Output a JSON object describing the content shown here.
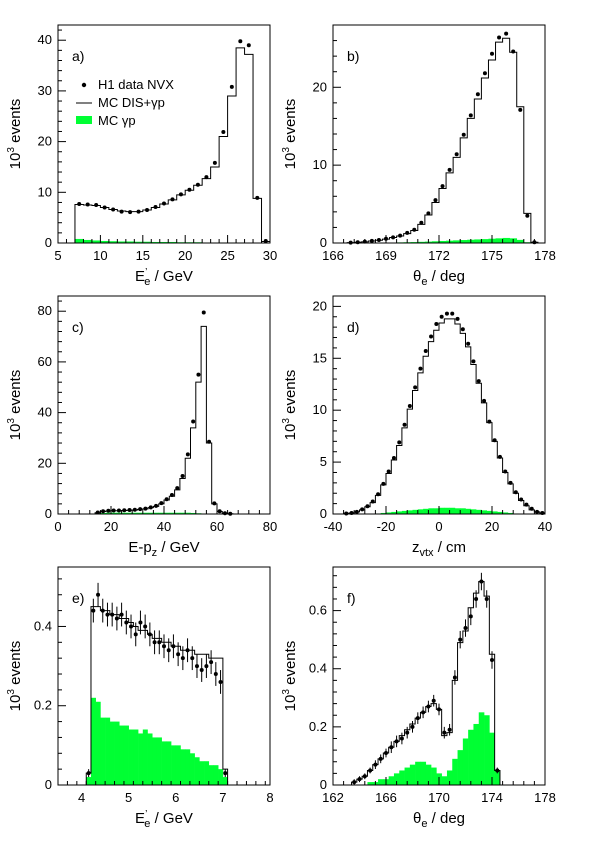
{
  "figure": {
    "legend": {
      "data": "H1 data NVX",
      "mc_dis": "MC DIS+γp",
      "mc_gp": "MC γp"
    },
    "colors": {
      "mc_gp_fill": "#00ff33",
      "data": "#000000",
      "mc_line": "#000000"
    }
  },
  "chart_data": [
    {
      "panel": "a)",
      "type": "histogram",
      "xlabel": "E’e / GeV",
      "ylabel": "10³ events",
      "xlim": [
        5,
        30
      ],
      "ylim": [
        0,
        43
      ],
      "xticks": [
        5,
        10,
        15,
        20,
        25,
        30
      ],
      "yticks": [
        0,
        10,
        20,
        30,
        40
      ],
      "bin_edges": [
        7,
        8,
        9,
        10,
        11,
        12,
        13,
        14,
        15,
        16,
        17,
        18,
        19,
        20,
        21,
        22,
        23,
        24,
        25,
        26,
        27,
        28,
        29,
        30
      ],
      "mc_dis": [
        7.6,
        7.5,
        7.4,
        7.0,
        6.6,
        6.3,
        6.2,
        6.2,
        6.5,
        7.0,
        7.7,
        8.5,
        9.5,
        10.4,
        11.4,
        12.7,
        15.0,
        21.0,
        29.0,
        38.5,
        37.2,
        8.8,
        0.3
      ],
      "mc_gp": [
        0.8,
        0.6,
        0.5,
        0.4,
        0.35,
        0.3,
        0.3,
        0.25,
        0.25,
        0.2,
        0.2,
        0.2,
        0.15,
        0.15,
        0.15,
        0.1,
        0.1,
        0.1,
        0.1,
        0.1,
        0.05,
        0.05,
        0
      ],
      "data": [
        7.7,
        7.6,
        7.5,
        7.0,
        6.6,
        6.2,
        6.1,
        6.2,
        6.5,
        7.1,
        7.8,
        8.6,
        9.6,
        10.5,
        11.5,
        13.0,
        15.8,
        21.9,
        30.8,
        39.8,
        39.0,
        8.9,
        0.4
      ]
    },
    {
      "panel": "b)",
      "type": "histogram",
      "xlabel": "θe / deg",
      "ylabel": "10³ events",
      "xlim": [
        166,
        178
      ],
      "ylim": [
        0,
        28
      ],
      "xticks": [
        166,
        169,
        172,
        175,
        178
      ],
      "yticks": [
        0,
        10,
        20
      ],
      "bin_edges": [
        166.0,
        166.4,
        166.8,
        167.2,
        167.6,
        168.0,
        168.4,
        168.8,
        169.2,
        169.6,
        170.0,
        170.4,
        170.8,
        171.2,
        171.6,
        172.0,
        172.4,
        172.8,
        173.2,
        173.6,
        174.0,
        174.4,
        174.8,
        175.2,
        175.6,
        176.0,
        176.4,
        176.8,
        177.2,
        177.6,
        178.0
      ],
      "mc_dis": [
        0,
        0,
        0.05,
        0.1,
        0.15,
        0.25,
        0.35,
        0.5,
        0.7,
        0.9,
        1.2,
        1.6,
        2.4,
        3.6,
        5.2,
        7.0,
        9.0,
        11.0,
        13.5,
        16.0,
        18.5,
        21.2,
        23.5,
        25.8,
        26.3,
        24.5,
        17.5,
        3.8,
        0.1,
        0
      ],
      "mc_gp": [
        0,
        0,
        0,
        0,
        0.02,
        0.03,
        0.04,
        0.05,
        0.06,
        0.08,
        0.1,
        0.12,
        0.15,
        0.18,
        0.22,
        0.26,
        0.3,
        0.34,
        0.38,
        0.42,
        0.46,
        0.5,
        0.55,
        0.6,
        0.65,
        0.6,
        0.4,
        0.1,
        0,
        0
      ],
      "data": [
        0,
        0,
        0.05,
        0.1,
        0.18,
        0.27,
        0.38,
        0.55,
        0.72,
        0.95,
        1.3,
        1.7,
        2.6,
        3.8,
        5.5,
        7.3,
        9.4,
        11.4,
        13.9,
        16.4,
        19.1,
        21.8,
        24.3,
        26.4,
        26.9,
        24.6,
        17.1,
        3.5,
        0.1,
        0
      ]
    },
    {
      "panel": "c)",
      "type": "histogram",
      "xlabel": "E-pz / GeV",
      "ylabel": "10³ events",
      "xlim": [
        0,
        80
      ],
      "ylim": [
        0,
        86
      ],
      "xticks": [
        0,
        20,
        40,
        60,
        80
      ],
      "yticks": [
        0,
        20,
        40,
        60,
        80
      ],
      "bin_edges": [
        14,
        16,
        18,
        20,
        22,
        24,
        26,
        28,
        30,
        32,
        34,
        36,
        38,
        40,
        42,
        44,
        46,
        48,
        50,
        52,
        54,
        56,
        58,
        60,
        62,
        64,
        66,
        68,
        70
      ],
      "mc_dis": [
        0.5,
        1.0,
        1.2,
        1.3,
        1.3,
        1.4,
        1.5,
        1.6,
        1.8,
        2.0,
        2.5,
        3.0,
        4.0,
        5.5,
        7.0,
        9.5,
        14.0,
        22.0,
        34.0,
        52.0,
        74.0,
        28.0,
        4.0,
        1.0,
        0.3,
        0.1,
        0,
        0
      ],
      "mc_gp": [
        0.3,
        0.4,
        0.5,
        0.5,
        0.5,
        0.5,
        0.5,
        0.5,
        0.5,
        0.5,
        0.5,
        0.5,
        0.5,
        0.5,
        0.5,
        0.5,
        0.5,
        0.5,
        0.4,
        0.3,
        0.2,
        0.1,
        0,
        0,
        0,
        0,
        0,
        0
      ],
      "data": [
        0.6,
        1.1,
        1.3,
        1.4,
        1.4,
        1.5,
        1.6,
        1.7,
        1.9,
        2.1,
        2.6,
        3.2,
        4.3,
        5.8,
        7.5,
        10.2,
        15.0,
        23.5,
        36.5,
        55.0,
        79.5,
        28.5,
        4.2,
        1.1,
        0.3,
        0.1,
        0,
        0
      ]
    },
    {
      "panel": "d)",
      "type": "histogram",
      "xlabel": "zvtx / cm",
      "ylabel": "10³ events",
      "xlim": [
        -40,
        40
      ],
      "ylim": [
        0,
        21
      ],
      "xticks": [
        -40,
        -20,
        0,
        20,
        40
      ],
      "yticks": [
        0,
        5,
        10,
        15,
        20
      ],
      "bin_edges": [
        -40,
        -38,
        -36,
        -34,
        -32,
        -30,
        -28,
        -26,
        -24,
        -22,
        -20,
        -18,
        -16,
        -14,
        -12,
        -10,
        -8,
        -6,
        -4,
        -2,
        0,
        2,
        4,
        6,
        8,
        10,
        12,
        14,
        16,
        18,
        20,
        22,
        24,
        26,
        28,
        30,
        32,
        34,
        36,
        38,
        40
      ],
      "mc_dis": [
        0,
        0,
        0.05,
        0.1,
        0.2,
        0.4,
        0.7,
        1.1,
        1.8,
        2.8,
        3.9,
        5.2,
        6.6,
        8.3,
        10.1,
        11.9,
        13.6,
        15.2,
        16.6,
        17.7,
        18.4,
        18.8,
        18.8,
        18.3,
        17.4,
        16.1,
        14.4,
        12.6,
        10.7,
        8.8,
        7.0,
        5.4,
        4.0,
        2.9,
        2.0,
        1.3,
        0.8,
        0.4,
        0.2,
        0.1
      ],
      "mc_gp": [
        0,
        0,
        0,
        0,
        0,
        0,
        0,
        0,
        0.05,
        0.1,
        0.15,
        0.2,
        0.25,
        0.3,
        0.35,
        0.4,
        0.45,
        0.5,
        0.55,
        0.55,
        0.6,
        0.6,
        0.6,
        0.55,
        0.55,
        0.5,
        0.45,
        0.4,
        0.35,
        0.3,
        0.25,
        0.2,
        0.15,
        0.1,
        0.05,
        0,
        0,
        0,
        0,
        0
      ],
      "data": [
        0,
        0,
        0.05,
        0.1,
        0.2,
        0.45,
        0.75,
        1.2,
        1.9,
        2.9,
        4.1,
        5.4,
        6.9,
        8.6,
        10.4,
        12.2,
        14.0,
        15.7,
        17.1,
        18.3,
        19.0,
        19.3,
        19.3,
        18.8,
        17.8,
        16.4,
        14.7,
        12.8,
        10.9,
        8.9,
        7.1,
        5.5,
        4.1,
        3.0,
        2.1,
        1.4,
        0.9,
        0.5,
        0.2,
        0.1
      ]
    },
    {
      "panel": "e)",
      "type": "histogram",
      "xlabel": "E’e / GeV",
      "ylabel": "10³ events",
      "xlim": [
        3.5,
        8.0
      ],
      "ylim": [
        0,
        0.55
      ],
      "xticks": [
        4,
        5,
        6,
        7,
        8
      ],
      "yticks": [
        0,
        0.2,
        0.4
      ],
      "bin_edges": [
        4.1,
        4.2,
        4.3,
        4.4,
        4.5,
        4.6,
        4.7,
        4.8,
        4.9,
        5.0,
        5.1,
        5.2,
        5.3,
        5.4,
        5.5,
        5.6,
        5.7,
        5.8,
        5.9,
        6.0,
        6.1,
        6.2,
        6.3,
        6.4,
        6.5,
        6.6,
        6.7,
        6.8,
        6.9,
        7.0,
        7.1
      ],
      "mc_dis": [
        0.03,
        0.45,
        0.45,
        0.44,
        0.44,
        0.43,
        0.43,
        0.42,
        0.42,
        0.41,
        0.4,
        0.39,
        0.39,
        0.38,
        0.37,
        0.37,
        0.36,
        0.36,
        0.35,
        0.35,
        0.34,
        0.34,
        0.34,
        0.33,
        0.33,
        0.33,
        0.32,
        0.32,
        0.32,
        0.04
      ],
      "mc_gp": [
        0.02,
        0.22,
        0.21,
        0.17,
        0.17,
        0.16,
        0.16,
        0.15,
        0.15,
        0.14,
        0.14,
        0.13,
        0.14,
        0.13,
        0.12,
        0.12,
        0.11,
        0.11,
        0.1,
        0.1,
        0.09,
        0.09,
        0.08,
        0.07,
        0.06,
        0.06,
        0.05,
        0.05,
        0.04,
        0.02
      ],
      "data": [
        0.03,
        0.44,
        0.48,
        0.44,
        0.43,
        0.43,
        0.42,
        0.43,
        0.41,
        0.4,
        0.38,
        0.41,
        0.4,
        0.38,
        0.36,
        0.36,
        0.35,
        0.34,
        0.35,
        0.33,
        0.32,
        0.34,
        0.32,
        0.3,
        0.29,
        0.3,
        0.31,
        0.28,
        0.26,
        0.03
      ],
      "errors": [
        0.01,
        0.03,
        0.03,
        0.03,
        0.03,
        0.03,
        0.03,
        0.03,
        0.03,
        0.03,
        0.03,
        0.03,
        0.03,
        0.03,
        0.03,
        0.03,
        0.03,
        0.03,
        0.03,
        0.03,
        0.03,
        0.03,
        0.03,
        0.03,
        0.03,
        0.03,
        0.03,
        0.03,
        0.03,
        0.01
      ]
    },
    {
      "panel": "f)",
      "type": "histogram",
      "xlabel": "θe / deg",
      "ylabel": "10³ events",
      "xlim": [
        162,
        178
      ],
      "ylim": [
        0,
        0.75
      ],
      "xticks": [
        162,
        166,
        170,
        174,
        178
      ],
      "yticks": [
        0,
        0.2,
        0.4,
        0.6
      ],
      "bin_edges": [
        163.0,
        163.4,
        163.8,
        164.2,
        164.6,
        165.0,
        165.4,
        165.8,
        166.2,
        166.6,
        167.0,
        167.4,
        167.8,
        168.2,
        168.6,
        169.0,
        169.4,
        169.8,
        170.2,
        170.6,
        171.0,
        171.4,
        171.8,
        172.2,
        172.6,
        173.0,
        173.4,
        173.8,
        174.2,
        174.6,
        175.0
      ],
      "mc_dis": [
        0,
        0.01,
        0.02,
        0.03,
        0.05,
        0.07,
        0.09,
        0.11,
        0.13,
        0.15,
        0.17,
        0.19,
        0.21,
        0.23,
        0.25,
        0.27,
        0.28,
        0.26,
        0.17,
        0.18,
        0.36,
        0.49,
        0.53,
        0.61,
        0.66,
        0.7,
        0.65,
        0.45,
        0.05,
        0
      ],
      "mc_gp": [
        0,
        0,
        0,
        0,
        0.01,
        0.01,
        0.02,
        0.02,
        0.03,
        0.04,
        0.05,
        0.06,
        0.07,
        0.08,
        0.08,
        0.07,
        0.06,
        0.04,
        0.03,
        0.05,
        0.09,
        0.12,
        0.16,
        0.19,
        0.21,
        0.25,
        0.24,
        0.18,
        0.05,
        0
      ],
      "data": [
        0,
        0.01,
        0.02,
        0.03,
        0.05,
        0.07,
        0.09,
        0.11,
        0.13,
        0.15,
        0.16,
        0.18,
        0.2,
        0.23,
        0.25,
        0.27,
        0.29,
        0.26,
        0.18,
        0.19,
        0.37,
        0.5,
        0.54,
        0.58,
        0.64,
        0.7,
        0.64,
        0.43,
        0.05,
        0
      ],
      "errors": [
        0,
        0.01,
        0.01,
        0.01,
        0.01,
        0.015,
        0.015,
        0.015,
        0.02,
        0.02,
        0.02,
        0.02,
        0.02,
        0.02,
        0.02,
        0.02,
        0.02,
        0.02,
        0.02,
        0.02,
        0.025,
        0.03,
        0.03,
        0.03,
        0.03,
        0.03,
        0.03,
        0.03,
        0.01,
        0
      ]
    }
  ]
}
